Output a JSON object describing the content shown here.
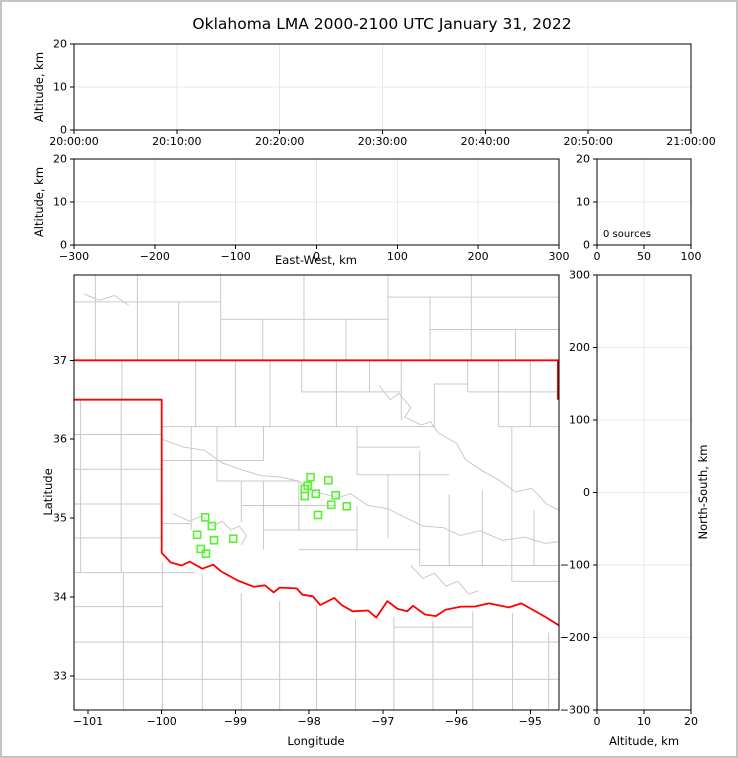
{
  "title": "Oklahoma LMA 2000-2100 UTC January 31, 2022",
  "colors": {
    "background": "#ffffff",
    "frame": "#c3c3c3",
    "axis": "#000000",
    "grid": "#e8e8e8",
    "county_lines": "#c9c9c9",
    "state_border": "#ff0000",
    "stations": "#58f12f"
  },
  "chart_data": {
    "type": "scatter",
    "title": "Oklahoma LMA 2000-2100 UTC January 31, 2022",
    "source_count": 0,
    "panels": [
      {
        "id": "altitude_vs_time",
        "ylabel": "Altitude, km",
        "xtick_labels": [
          "20:00:00",
          "20:10:00",
          "20:20:00",
          "20:30:00",
          "20:40:00",
          "20:50:00",
          "21:00:00"
        ],
        "ytick_labels_top_down": [
          "20",
          "10",
          "0"
        ],
        "y_range": [
          0,
          20
        ],
        "grid": true,
        "points": []
      },
      {
        "id": "altitude_vs_eastwest",
        "xlabel": "East-West, km",
        "ylabel": "Altitude, km",
        "xtick_labels": [
          "−300",
          "−200",
          "−100",
          "0",
          "100",
          "200",
          "300"
        ],
        "ytick_labels_top_down": [
          "20",
          "10",
          "0"
        ],
        "x_range": [
          -300,
          300
        ],
        "y_range": [
          0,
          20
        ],
        "grid": true,
        "points": []
      },
      {
        "id": "altitude_histogram",
        "annotation": "0 sources",
        "xtick_labels": [
          "0",
          "50",
          "100"
        ],
        "ytick_labels_top_down": [
          "20",
          "10",
          "0"
        ],
        "x_range": [
          0,
          100
        ],
        "y_range": [
          0,
          20
        ],
        "grid": true,
        "points": []
      },
      {
        "id": "plan_view_map",
        "xlabel": "Longitude",
        "ylabel": "Latitude",
        "xticks": [
          -101,
          -100,
          -99,
          -98,
          -97,
          -96,
          -95
        ],
        "xtick_labels": [
          "−101",
          "−100",
          "−99",
          "−98",
          "−97",
          "−96",
          "−95"
        ],
        "yticks_top_down": [
          37,
          36,
          35,
          34,
          33
        ],
        "ytick_labels_top_down": [
          "37",
          "36",
          "35",
          "34",
          "33"
        ],
        "lon_range": [
          -101.19,
          -94.61
        ],
        "lat_range": [
          32.57,
          38.08
        ],
        "grid": false,
        "stations_lon_lat": [
          [
            -97.98,
            35.52
          ],
          [
            -97.74,
            35.48
          ],
          [
            -98.02,
            35.41
          ],
          [
            -98.06,
            35.37
          ],
          [
            -98.06,
            35.28
          ],
          [
            -97.91,
            35.31
          ],
          [
            -97.64,
            35.29
          ],
          [
            -97.7,
            35.17
          ],
          [
            -97.49,
            35.15
          ],
          [
            -97.88,
            35.04
          ],
          [
            -99.41,
            35.01
          ],
          [
            -99.32,
            34.9
          ],
          [
            -99.52,
            34.79
          ],
          [
            -99.29,
            34.72
          ],
          [
            -99.03,
            34.74
          ],
          [
            -99.47,
            34.61
          ],
          [
            -99.4,
            34.55
          ]
        ]
      },
      {
        "id": "northsouth_vs_altitude",
        "xlabel": "Altitude, km",
        "ylabel": "North-South, km",
        "xtick_labels": [
          "0",
          "10",
          "20"
        ],
        "ytick_labels_top_down": [
          "300",
          "200",
          "100",
          "0",
          "−100",
          "−200",
          "−300"
        ],
        "x_range": [
          0,
          20
        ],
        "y_range": [
          -300,
          300
        ],
        "grid": true,
        "points": []
      }
    ]
  },
  "map_layers": {
    "state_border_polylines": [
      [
        [
          -101.19,
          37.0
        ],
        [
          -94.61,
          37.0
        ]
      ],
      [
        [
          -94.625,
          37.0
        ],
        [
          -94.625,
          36.5
        ]
      ],
      [
        [
          -101.19,
          36.5
        ],
        [
          -100.0,
          36.5
        ],
        [
          -100.0,
          34.56
        ],
        [
          -99.88,
          34.44
        ],
        [
          -99.73,
          34.4
        ],
        [
          -99.62,
          34.45
        ],
        [
          -99.45,
          34.36
        ],
        [
          -99.3,
          34.41
        ],
        [
          -99.2,
          34.33
        ],
        [
          -98.97,
          34.21
        ],
        [
          -98.75,
          34.13
        ],
        [
          -98.6,
          34.15
        ],
        [
          -98.48,
          34.06
        ],
        [
          -98.4,
          34.12
        ],
        [
          -98.17,
          34.11
        ],
        [
          -98.09,
          34.03
        ],
        [
          -97.95,
          34.01
        ],
        [
          -97.85,
          33.9
        ],
        [
          -97.66,
          33.99
        ],
        [
          -97.56,
          33.9
        ],
        [
          -97.41,
          33.82
        ],
        [
          -97.2,
          33.83
        ],
        [
          -97.09,
          33.74
        ],
        [
          -96.94,
          33.95
        ],
        [
          -96.8,
          33.85
        ],
        [
          -96.67,
          33.82
        ],
        [
          -96.59,
          33.89
        ],
        [
          -96.43,
          33.78
        ],
        [
          -96.28,
          33.76
        ],
        [
          -96.15,
          33.84
        ],
        [
          -95.94,
          33.88
        ],
        [
          -95.76,
          33.88
        ],
        [
          -95.56,
          33.92
        ],
        [
          -95.29,
          33.87
        ],
        [
          -95.12,
          33.92
        ],
        [
          -94.91,
          33.81
        ],
        [
          -94.78,
          33.74
        ],
        [
          -94.61,
          33.64
        ]
      ]
    ],
    "county_segments_vertical": [
      [
        -100.9,
        37.0,
        38.08
      ],
      [
        -100.33,
        37.0,
        38.08
      ],
      [
        -99.77,
        37.0,
        37.74
      ],
      [
        -99.2,
        37.0,
        38.08
      ],
      [
        -98.63,
        37.0,
        37.52
      ],
      [
        -98.07,
        37.0,
        38.08
      ],
      [
        -97.5,
        37.0,
        37.52
      ],
      [
        -96.93,
        37.0,
        38.08
      ],
      [
        -96.36,
        37.0,
        37.8
      ],
      [
        -95.8,
        37.0,
        38.08
      ],
      [
        -95.2,
        37.0,
        37.39
      ],
      [
        -100.54,
        36.5,
        37.0
      ],
      [
        -100.55,
        34.31,
        36.5
      ],
      [
        -101.1,
        34.31,
        36.5
      ],
      [
        -99.54,
        36.16,
        37.0
      ],
      [
        -99.0,
        36.16,
        37.0
      ],
      [
        -98.53,
        36.16,
        37.0
      ],
      [
        -98.1,
        36.6,
        37.0
      ],
      [
        -97.63,
        36.16,
        37.0
      ],
      [
        -97.18,
        36.6,
        37.0
      ],
      [
        -96.75,
        36.24,
        37.0
      ],
      [
        -96.3,
        36.16,
        36.7
      ],
      [
        -95.85,
        36.6,
        37.0
      ],
      [
        -95.43,
        36.16,
        37.0
      ],
      [
        -95.0,
        36.16,
        37.0
      ],
      [
        -99.6,
        34.85,
        36.16
      ],
      [
        -99.25,
        35.47,
        36.16
      ],
      [
        -98.92,
        34.95,
        35.47
      ],
      [
        -98.62,
        34.6,
        35.47
      ],
      [
        -98.62,
        35.73,
        36.16
      ],
      [
        -98.14,
        34.85,
        35.47
      ],
      [
        -97.35,
        34.6,
        35.16
      ],
      [
        -97.35,
        35.55,
        36.16
      ],
      [
        -96.93,
        34.75,
        35.55
      ],
      [
        -96.5,
        34.4,
        35.85
      ],
      [
        -96.1,
        34.4,
        35.3
      ],
      [
        -95.65,
        34.4,
        35.35
      ],
      [
        -95.25,
        34.2,
        36.16
      ],
      [
        -94.95,
        34.4,
        35.1
      ],
      [
        -100.52,
        32.57,
        34.31
      ],
      [
        -99.99,
        32.57,
        34.44
      ],
      [
        -99.45,
        32.57,
        34.3
      ],
      [
        -98.92,
        32.57,
        34.05
      ],
      [
        -98.4,
        32.57,
        33.95
      ],
      [
        -97.9,
        32.57,
        33.9
      ],
      [
        -97.37,
        32.57,
        33.72
      ],
      [
        -96.85,
        32.57,
        33.75
      ],
      [
        -96.32,
        32.57,
        33.7
      ],
      [
        -95.78,
        32.57,
        33.82
      ],
      [
        -95.24,
        32.57,
        33.8
      ],
      [
        -94.75,
        32.57,
        33.55
      ]
    ],
    "county_segments_horizontal": [
      [
        37.74,
        -101.19,
        -99.2
      ],
      [
        37.52,
        -99.2,
        -96.93
      ],
      [
        37.8,
        -96.93,
        -94.61
      ],
      [
        37.39,
        -96.36,
        -94.61
      ],
      [
        36.06,
        -101.19,
        -100.0
      ],
      [
        35.62,
        -101.19,
        -100.0
      ],
      [
        35.18,
        -101.19,
        -100.0
      ],
      [
        34.75,
        -101.19,
        -100.0
      ],
      [
        34.31,
        -101.19,
        -99.55
      ],
      [
        36.6,
        -98.1,
        -96.75
      ],
      [
        36.16,
        -100.0,
        -96.3
      ],
      [
        36.6,
        -95.85,
        -94.61
      ],
      [
        36.16,
        -95.43,
        -94.61
      ],
      [
        36.7,
        -96.3,
        -95.85
      ],
      [
        35.73,
        -100.0,
        -98.62
      ],
      [
        35.47,
        -99.25,
        -98.14
      ],
      [
        35.9,
        -97.35,
        -96.5
      ],
      [
        35.55,
        -97.35,
        -96.1
      ],
      [
        35.16,
        -98.92,
        -97.63
      ],
      [
        34.85,
        -98.62,
        -97.35
      ],
      [
        34.6,
        -98.14,
        -96.5
      ],
      [
        34.4,
        -96.5,
        -94.61
      ],
      [
        34.2,
        -95.25,
        -94.61
      ],
      [
        34.93,
        -100.0,
        -99.6
      ],
      [
        33.43,
        -101.19,
        -94.61
      ],
      [
        32.96,
        -101.19,
        -94.61
      ],
      [
        33.88,
        -101.19,
        -99.99
      ],
      [
        33.62,
        -96.85,
        -95.78
      ]
    ],
    "county_polylines": [
      [
        [
          -97.05,
          36.68
        ],
        [
          -96.9,
          36.5
        ],
        [
          -96.78,
          36.58
        ],
        [
          -96.62,
          36.4
        ],
        [
          -96.7,
          36.28
        ],
        [
          -96.48,
          36.18
        ],
        [
          -96.35,
          36.22
        ],
        [
          -96.25,
          36.08
        ],
        [
          -96.0,
          35.95
        ],
        [
          -95.88,
          35.74
        ],
        [
          -95.65,
          35.6
        ],
        [
          -95.42,
          35.48
        ],
        [
          -95.2,
          35.33
        ],
        [
          -94.98,
          35.38
        ],
        [
          -94.78,
          35.18
        ],
        [
          -94.61,
          35.1
        ]
      ],
      [
        [
          -98.14,
          35.47
        ],
        [
          -97.95,
          35.34
        ],
        [
          -97.6,
          35.26
        ],
        [
          -97.44,
          35.31
        ],
        [
          -97.2,
          35.16
        ],
        [
          -96.93,
          35.12
        ],
        [
          -96.68,
          35.0
        ],
        [
          -96.45,
          34.9
        ],
        [
          -96.18,
          34.88
        ],
        [
          -95.95,
          34.78
        ],
        [
          -95.68,
          34.84
        ],
        [
          -95.38,
          34.72
        ],
        [
          -95.08,
          34.76
        ],
        [
          -94.8,
          34.68
        ],
        [
          -94.61,
          34.7
        ]
      ],
      [
        [
          -100.0,
          36.0
        ],
        [
          -99.7,
          35.9
        ],
        [
          -99.42,
          35.86
        ],
        [
          -99.18,
          35.7
        ],
        [
          -98.94,
          35.62
        ],
        [
          -98.66,
          35.54
        ],
        [
          -98.38,
          35.52
        ],
        [
          -98.14,
          35.47
        ]
      ],
      [
        [
          -99.85,
          35.06
        ],
        [
          -99.62,
          34.96
        ],
        [
          -99.46,
          35.03
        ],
        [
          -99.3,
          34.9
        ],
        [
          -99.18,
          34.96
        ],
        [
          -99.06,
          34.85
        ],
        [
          -98.95,
          34.9
        ],
        [
          -98.85,
          34.78
        ],
        [
          -98.92,
          34.66
        ]
      ],
      [
        [
          -96.62,
          34.4
        ],
        [
          -96.46,
          34.24
        ],
        [
          -96.3,
          34.3
        ],
        [
          -96.14,
          34.14
        ],
        [
          -95.98,
          34.2
        ],
        [
          -95.84,
          34.04
        ],
        [
          -95.7,
          34.08
        ]
      ],
      [
        [
          -101.05,
          37.84
        ],
        [
          -100.85,
          37.76
        ],
        [
          -100.64,
          37.82
        ],
        [
          -100.45,
          37.7
        ]
      ]
    ]
  }
}
